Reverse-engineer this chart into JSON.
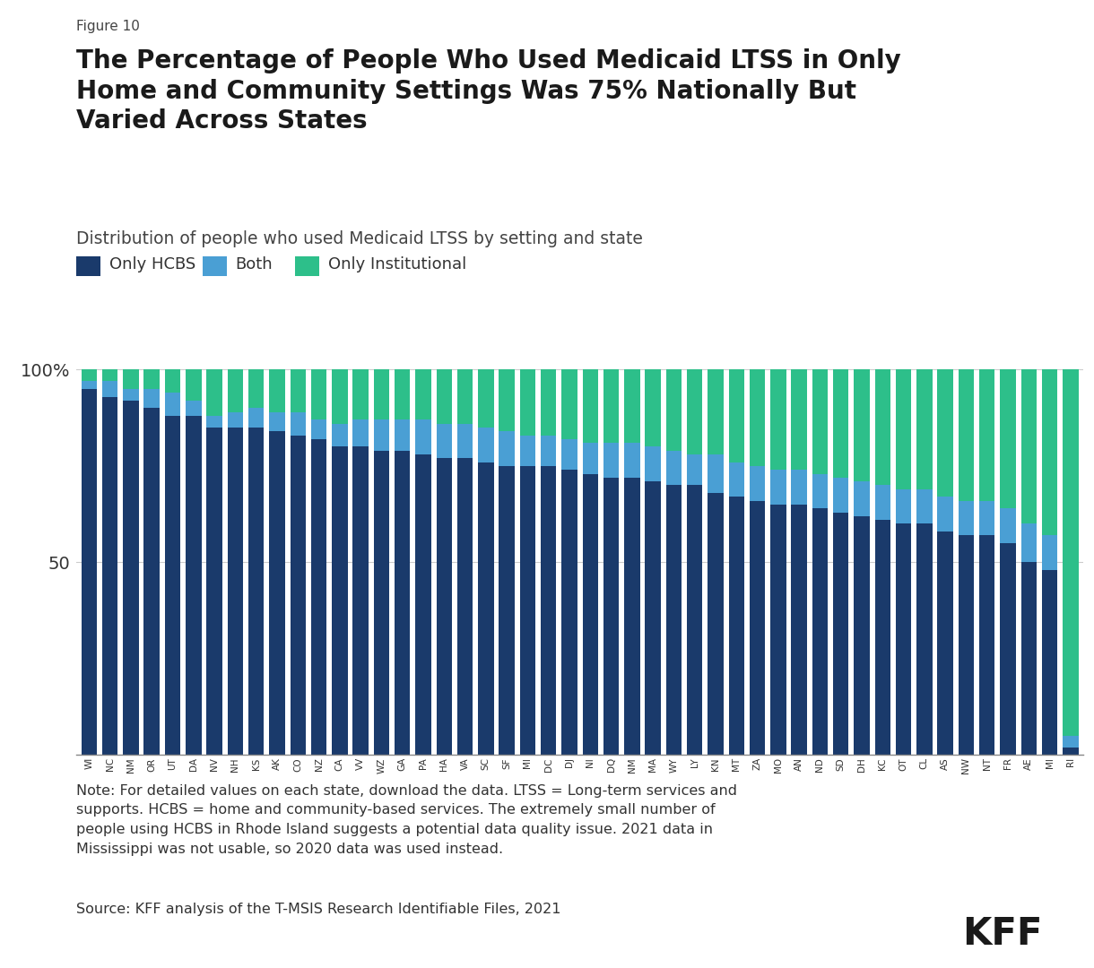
{
  "figure_label": "Figure 10",
  "title": "The Percentage of People Who Used Medicaid LTSS in Only\nHome and Community Settings Was 75% Nationally But\nVaried Across States",
  "subtitle": "Distribution of people who used Medicaid LTSS by setting and state",
  "legend_labels": [
    "Only HCBS",
    "Both",
    "Only Institutional"
  ],
  "colors": [
    "#1a3a6b",
    "#4a9fd4",
    "#2dbf8a"
  ],
  "note": "Note: For detailed values on each state, download the data. LTSS = Long-term services and\nsupports. HCBS = home and community-based services. The extremely small number of\npeople using HCBS in Rhode Island suggests a potential data quality issue. 2021 data in\nMississippi was not usable, so 2020 data was used instead.",
  "source": "Source: KFF analysis of the T-MSIS Research Identifiable Files, 2021",
  "states": [
    "WI",
    "NC",
    "NM",
    "OR",
    "UT",
    "DA",
    "NV",
    "NH",
    "KS",
    "AK",
    "CO",
    "NZ",
    "CA",
    "VV",
    "WZ",
    "GA",
    "PA",
    "HA",
    "VA",
    "SC",
    "SF",
    "MI",
    "DC",
    "DJ",
    "NI",
    "DQ",
    "NM",
    "MA",
    "WY",
    "LY",
    "KN",
    "MT",
    "ZA",
    "MO",
    "AN",
    "ND",
    "SD",
    "DH",
    "KC",
    "OT",
    "CL",
    "AS",
    "NW",
    "NT",
    "FR",
    "AE",
    "MI",
    "RI"
  ],
  "only_hcbs": [
    95,
    93,
    92,
    90,
    88,
    88,
    85,
    85,
    85,
    84,
    83,
    82,
    80,
    80,
    79,
    79,
    78,
    77,
    77,
    76,
    75,
    75,
    75,
    74,
    73,
    72,
    72,
    71,
    70,
    70,
    68,
    67,
    66,
    65,
    65,
    64,
    63,
    62,
    61,
    60,
    60,
    58,
    57,
    57,
    55,
    50,
    48,
    2
  ],
  "both": [
    2,
    4,
    3,
    5,
    6,
    4,
    3,
    4,
    5,
    5,
    6,
    5,
    6,
    7,
    8,
    8,
    9,
    9,
    9,
    9,
    9,
    8,
    8,
    8,
    8,
    9,
    9,
    9,
    9,
    8,
    10,
    9,
    9,
    9,
    9,
    9,
    9,
    9,
    9,
    9,
    9,
    9,
    9,
    9,
    9,
    10,
    9,
    3
  ],
  "only_institutional": [
    3,
    3,
    5,
    5,
    6,
    8,
    12,
    11,
    10,
    11,
    11,
    13,
    14,
    13,
    13,
    13,
    13,
    14,
    14,
    15,
    16,
    17,
    17,
    18,
    19,
    19,
    19,
    20,
    21,
    22,
    22,
    24,
    25,
    26,
    26,
    27,
    28,
    29,
    30,
    31,
    31,
    33,
    34,
    34,
    36,
    40,
    43,
    95
  ],
  "background_color": "#ffffff",
  "bar_width": 0.75
}
